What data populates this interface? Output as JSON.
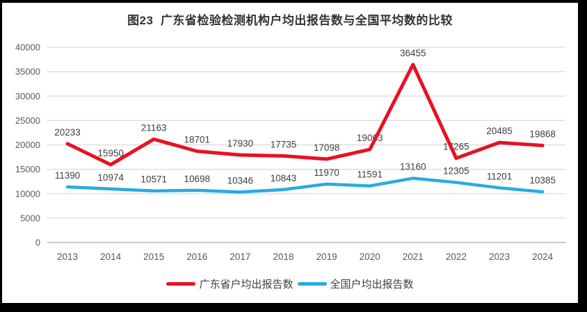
{
  "title": "图23  广东省检验检测机构户均出报告数与全国平均数的比较",
  "chart_data": {
    "type": "line",
    "title": "图23  广东省检验检测机构户均出报告数与全国平均数的比较",
    "categories": [
      "2013",
      "2014",
      "2015",
      "2016",
      "2017",
      "2018",
      "2019",
      "2020",
      "2021",
      "2022",
      "2023",
      "2024"
    ],
    "series": [
      {
        "name": "广东省户均出报告数",
        "color": "#E81123",
        "values": [
          20233,
          15950,
          21163,
          18701,
          17930,
          17735,
          17098,
          19063,
          36455,
          17265,
          20485,
          19868
        ]
      },
      {
        "name": "全国户均出报告数",
        "color": "#29ABE2",
        "values": [
          11390,
          10974,
          10571,
          10698,
          10346,
          10843,
          11970,
          11591,
          13160,
          12305,
          11201,
          10385
        ]
      }
    ],
    "xlabel": "",
    "ylabel": "",
    "ylim": [
      0,
      40000
    ],
    "ytick_step": 5000,
    "yticks": [
      0,
      5000,
      10000,
      15000,
      20000,
      25000,
      30000,
      35000,
      40000
    ],
    "grid": true,
    "data_labels": true,
    "legend_position": "bottom"
  },
  "colors": {
    "gridline": "#D9D9D9",
    "axis_line": "#A6A6A6",
    "tick_text": "#595959",
    "data_label_text": "#3F3F3F",
    "title_text": "#333333",
    "frame_border": "#000000"
  }
}
